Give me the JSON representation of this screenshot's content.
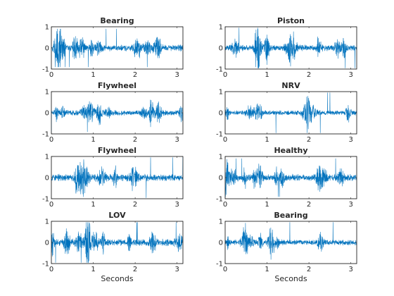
{
  "figure": {
    "background": "#ffffff",
    "axis_color": "#262626",
    "line_color": "#0072bd"
  },
  "chart_data": [
    {
      "type": "line",
      "title": "Bearing",
      "xlabel": "",
      "ylabel": "",
      "xlim": [
        0,
        3.14
      ],
      "ylim": [
        -1,
        1
      ],
      "xticks": [
        0,
        1,
        2,
        3
      ],
      "yticks": [
        -1,
        0,
        1
      ],
      "grid": false,
      "series": [
        {
          "amplitude": 0.4,
          "peak": 0.9,
          "seed": 11,
          "bursts": 14
        }
      ]
    },
    {
      "type": "line",
      "title": "Piston",
      "xlabel": "",
      "ylabel": "",
      "xlim": [
        0,
        3.14
      ],
      "ylim": [
        -1,
        1
      ],
      "xticks": [
        0,
        1,
        2,
        3
      ],
      "yticks": [
        -1,
        0,
        1
      ],
      "grid": false,
      "series": [
        {
          "amplitude": 0.4,
          "peak": 0.95,
          "seed": 23,
          "bursts": 13
        }
      ]
    },
    {
      "type": "line",
      "title": "Flywheel",
      "xlabel": "",
      "ylabel": "",
      "xlim": [
        0,
        3.14
      ],
      "ylim": [
        -1,
        1
      ],
      "xticks": [
        0,
        1,
        2,
        3
      ],
      "yticks": [
        -1,
        0,
        1
      ],
      "grid": false,
      "series": [
        {
          "amplitude": 0.35,
          "peak": 0.9,
          "seed": 37,
          "bursts": 13
        }
      ]
    },
    {
      "type": "line",
      "title": "NRV",
      "xlabel": "",
      "ylabel": "",
      "xlim": [
        0,
        3.14
      ],
      "ylim": [
        -1,
        1
      ],
      "xticks": [
        0,
        1,
        2,
        3
      ],
      "yticks": [
        -1,
        0,
        1
      ],
      "grid": false,
      "series": [
        {
          "amplitude": 0.3,
          "peak": 0.95,
          "seed": 41,
          "bursts": 8
        }
      ]
    },
    {
      "type": "line",
      "title": "Flywheel",
      "xlabel": "",
      "ylabel": "",
      "xlim": [
        0,
        3.14
      ],
      "ylim": [
        -1,
        1
      ],
      "xticks": [
        0,
        1,
        2,
        3
      ],
      "yticks": [
        -1,
        0,
        1
      ],
      "grid": false,
      "series": [
        {
          "amplitude": 0.45,
          "peak": 0.95,
          "seed": 53,
          "bursts": 11
        }
      ]
    },
    {
      "type": "line",
      "title": "Healthy",
      "xlabel": "",
      "ylabel": "",
      "xlim": [
        0,
        3.14
      ],
      "ylim": [
        -1,
        1
      ],
      "xticks": [
        0,
        1,
        2,
        3
      ],
      "yticks": [
        -1,
        0,
        1
      ],
      "grid": false,
      "series": [
        {
          "amplitude": 0.45,
          "peak": 0.9,
          "seed": 67,
          "bursts": 12
        }
      ]
    },
    {
      "type": "line",
      "title": "LOV",
      "xlabel": "Seconds",
      "ylabel": "",
      "xlim": [
        0,
        3.14
      ],
      "ylim": [
        -1,
        1
      ],
      "xticks": [
        0,
        1,
        2,
        3
      ],
      "yticks": [
        -1,
        0,
        1
      ],
      "grid": false,
      "series": [
        {
          "amplitude": 0.45,
          "peak": 0.95,
          "seed": 79,
          "bursts": 13
        }
      ]
    },
    {
      "type": "line",
      "title": "Bearing",
      "xlabel": "Seconds",
      "ylabel": "",
      "xlim": [
        0,
        3.14
      ],
      "ylim": [
        -1,
        1
      ],
      "xticks": [
        0,
        1,
        2,
        3
      ],
      "yticks": [
        -1,
        0,
        1
      ],
      "grid": false,
      "series": [
        {
          "amplitude": 0.35,
          "peak": 0.95,
          "seed": 97,
          "bursts": 12
        }
      ]
    }
  ]
}
